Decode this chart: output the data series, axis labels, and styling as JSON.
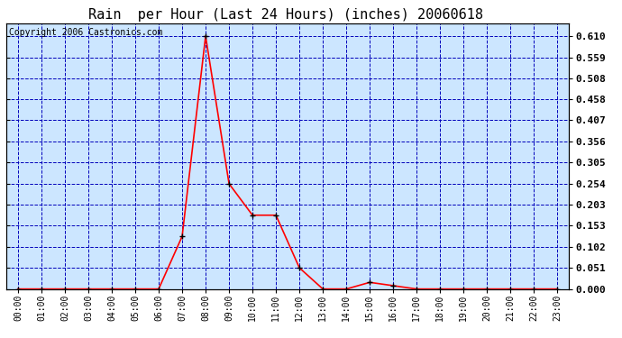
{
  "title": "Rain  per Hour (Last 24 Hours) (inches) 20060618",
  "copyright_text": "Copyright 2006 Castronics.com",
  "x_labels": [
    "00:00",
    "01:00",
    "02:00",
    "03:00",
    "04:00",
    "05:00",
    "06:00",
    "07:00",
    "08:00",
    "09:00",
    "10:00",
    "11:00",
    "12:00",
    "13:00",
    "14:00",
    "15:00",
    "16:00",
    "17:00",
    "18:00",
    "19:00",
    "20:00",
    "21:00",
    "22:00",
    "23:00"
  ],
  "y_values": [
    0.0,
    0.0,
    0.0,
    0.0,
    0.0,
    0.0,
    0.0,
    0.127,
    0.61,
    0.254,
    0.178,
    0.178,
    0.051,
    0.0,
    0.0,
    0.016,
    0.008,
    0.0,
    0.0,
    0.0,
    0.0,
    0.0,
    0.0,
    0.0
  ],
  "y_ticks": [
    0.0,
    0.051,
    0.102,
    0.153,
    0.203,
    0.254,
    0.305,
    0.356,
    0.407,
    0.458,
    0.508,
    0.559,
    0.61
  ],
  "ylim": [
    0.0,
    0.64
  ],
  "line_color": "#ff0000",
  "marker_color": "#000000",
  "bg_color": "#ffffff",
  "plot_bg_color": "#cce6ff",
  "grid_color": "#0000bb",
  "border_color": "#000000",
  "title_color": "#000000",
  "copyright_color": "#000000",
  "right_label_color": "#000000",
  "title_fontsize": 11,
  "tick_fontsize": 7,
  "copyright_fontsize": 7
}
